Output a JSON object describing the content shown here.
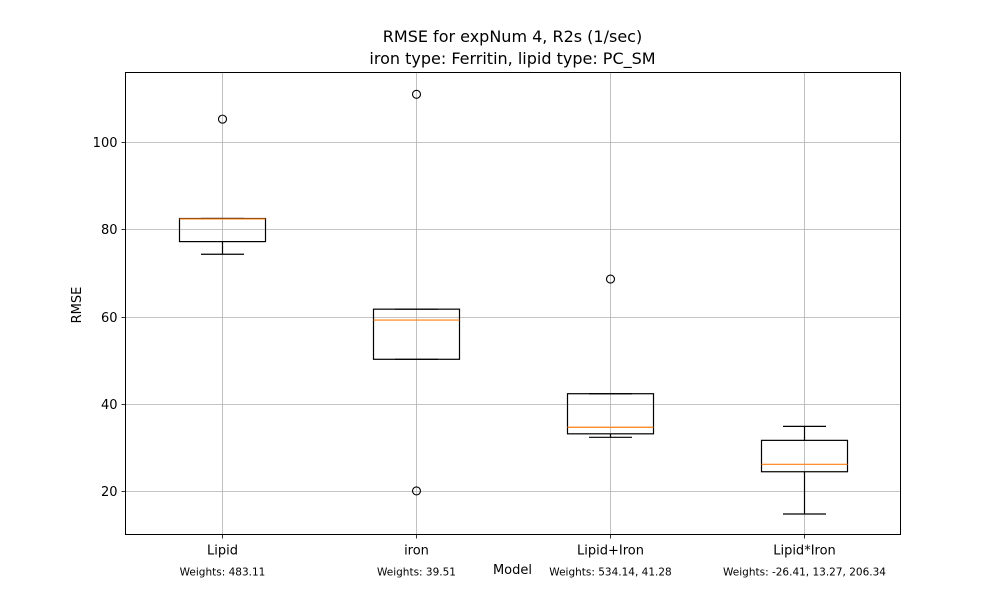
{
  "chart_data": {
    "type": "box",
    "title_line1": "RMSE for expNum 4, R2s (1/sec)",
    "title_line2": "iron type: Ferritin, lipid type: PC_SM",
    "xlabel": "Model",
    "ylabel": "RMSE",
    "ylim": [
      10,
      116
    ],
    "yticks": [
      20,
      40,
      60,
      80,
      100
    ],
    "grid": true,
    "categories": [
      "Lipid",
      "iron",
      "Lipid+Iron",
      "Lipid*Iron"
    ],
    "boxes": [
      {
        "category": "Lipid",
        "whisker_low": 74.3,
        "q1": 77.2,
        "median": 82.4,
        "q3": 82.5,
        "whisker_high": 82.5,
        "outliers": [
          105.3
        ]
      },
      {
        "category": "iron",
        "whisker_low": 50.2,
        "q1": 50.2,
        "median": 59.2,
        "q3": 61.7,
        "whisker_high": 61.7,
        "outliers": [
          111.0,
          20.0
        ]
      },
      {
        "category": "Lipid+Iron",
        "whisker_low": 32.3,
        "q1": 33.1,
        "median": 34.6,
        "q3": 42.3,
        "whisker_high": 42.3,
        "outliers": [
          68.6
        ]
      },
      {
        "category": "Lipid*Iron",
        "whisker_low": 14.7,
        "q1": 24.4,
        "median": 26.1,
        "q3": 31.6,
        "whisker_high": 34.8,
        "outliers": []
      }
    ],
    "weights": [
      "Weights: 483.11",
      "Weights: 39.51",
      "Weights: 534.14, 41.28",
      "Weights: -26.41, 13.27, 206.34"
    ],
    "colors": {
      "box": "#000000",
      "median": "#ff7f0e",
      "grid": "#b0b0b0"
    }
  }
}
